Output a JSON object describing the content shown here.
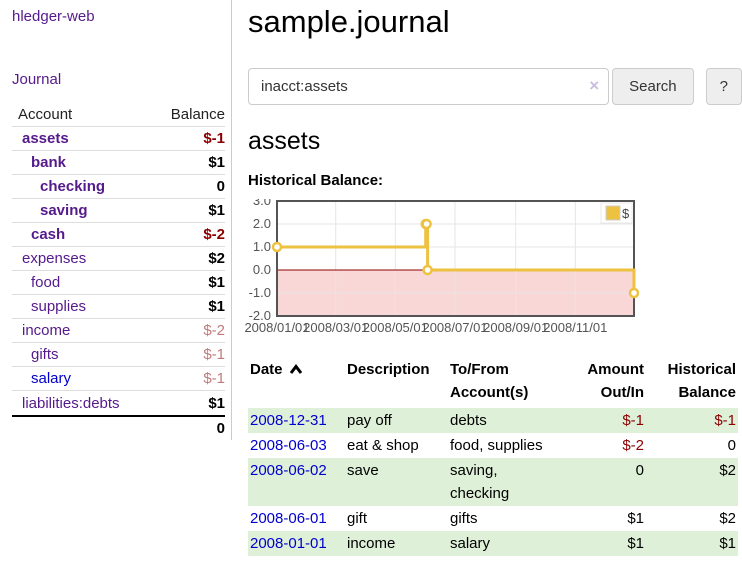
{
  "app": {
    "title": "hledger-web",
    "nav_journal": "Journal"
  },
  "sidebar": {
    "header": {
      "account": "Account",
      "balance": "Balance"
    },
    "accounts": [
      {
        "name": "assets",
        "indent": 1,
        "emph": true,
        "name_tone": "purple",
        "balance": "$-1",
        "balance_tone": "neg-strong"
      },
      {
        "name": "bank",
        "indent": 2,
        "emph": true,
        "name_tone": "purple",
        "balance": "$1",
        "balance_tone": "pos"
      },
      {
        "name": "checking",
        "indent": 3,
        "emph": true,
        "name_tone": "purple",
        "balance": "0",
        "balance_tone": "pos"
      },
      {
        "name": "saving",
        "indent": 3,
        "emph": true,
        "name_tone": "purple",
        "balance": "$1",
        "balance_tone": "pos"
      },
      {
        "name": "cash",
        "indent": 2,
        "emph": true,
        "name_tone": "purple",
        "balance": "$-2",
        "balance_tone": "neg-strong"
      },
      {
        "name": "expenses",
        "indent": 1,
        "emph": false,
        "name_tone": "purple",
        "balance": "$2",
        "balance_tone": "pos"
      },
      {
        "name": "food",
        "indent": 2,
        "emph": false,
        "name_tone": "purple",
        "balance": "$1",
        "balance_tone": "pos"
      },
      {
        "name": "supplies",
        "indent": 2,
        "emph": false,
        "name_tone": "purple",
        "balance": "$1",
        "balance_tone": "pos"
      },
      {
        "name": "income",
        "indent": 1,
        "emph": false,
        "name_tone": "purple",
        "balance": "$-2",
        "balance_tone": "neg-weak"
      },
      {
        "name": "gifts",
        "indent": 2,
        "emph": false,
        "name_tone": "purple",
        "balance": "$-1",
        "balance_tone": "neg-weak"
      },
      {
        "name": "salary",
        "indent": 2,
        "emph": false,
        "name_tone": "blue",
        "balance": "$-1",
        "balance_tone": "neg-weak"
      },
      {
        "name": "liabilities:debts",
        "indent": 1,
        "emph": false,
        "name_tone": "purple",
        "balance": "$1",
        "balance_tone": "pos"
      }
    ],
    "total": "0"
  },
  "main": {
    "title": "sample.journal",
    "search": {
      "value": "inacct:assets",
      "clear": "×",
      "button": "Search",
      "help": "?"
    },
    "account_heading": "assets",
    "chart_label": "Historical Balance:",
    "register": {
      "headers": [
        "Date",
        "Description",
        "To/From Account(s)",
        "Amount Out/In",
        "Historical Balance"
      ],
      "rows": [
        {
          "date": "2008-12-31",
          "description": "pay off",
          "accounts": "debts",
          "amount": "$-1",
          "amount_tone": "neg",
          "balance": "$-1",
          "balance_tone": "neg"
        },
        {
          "date": "2008-06-03",
          "description": "eat & shop",
          "accounts": "food, supplies",
          "amount": "$-2",
          "amount_tone": "neg",
          "balance": "0",
          "balance_tone": "pos"
        },
        {
          "date": "2008-06-02",
          "description": "save",
          "accounts": "saving,\nchecking",
          "amount": "0",
          "amount_tone": "pos",
          "balance": "$2",
          "balance_tone": "pos"
        },
        {
          "date": "2008-06-01",
          "description": "gift",
          "accounts": "gifts",
          "amount": "$1",
          "amount_tone": "pos",
          "balance": "$2",
          "balance_tone": "pos"
        },
        {
          "date": "2008-01-01",
          "description": "income",
          "accounts": "salary",
          "amount": "$1",
          "amount_tone": "pos",
          "balance": "$1",
          "balance_tone": "pos"
        }
      ]
    }
  },
  "chart_data": {
    "type": "line",
    "style": "step-after",
    "title": "Historical Balance:",
    "series": [
      {
        "name": "$",
        "points": [
          [
            "2008-01-01",
            1
          ],
          [
            "2008-06-01",
            2
          ],
          [
            "2008-06-02",
            2
          ],
          [
            "2008-06-03",
            0
          ],
          [
            "2008-12-31",
            -1
          ]
        ]
      }
    ],
    "x_ticks": [
      "2008/01/01",
      "2008/03/01",
      "2008/05/01",
      "2008/07/01",
      "2008/09/01",
      "2008/11/01"
    ],
    "y_ticks": [
      "3.0",
      "2.0",
      "1.0",
      "0.0",
      "-1.0",
      "-2.0"
    ],
    "xlim": [
      "2008-01-01",
      "2008-12-31"
    ],
    "ylim": [
      -2,
      3
    ],
    "grid": true,
    "legend": {
      "label": "$",
      "position": "top-right"
    },
    "negative_region_shaded": true
  },
  "colors": {
    "purple": "#551a8b",
    "blue": "#0000cc",
    "neg-strong": "#8b0000",
    "neg-weak": "#bf7b7b",
    "green-row": "#dff0d8",
    "gold": "#edc240",
    "pink": "#f9d7d7",
    "zero-line": "#8b0000",
    "chart-border": "#545454",
    "grid-line": "#e6e6e6",
    "axis-text": "#545454",
    "btn-bg": "#eeeeee",
    "btn-border": "#cccccc",
    "input-border": "#cccccc",
    "divider": "#cccccc",
    "row-border": "#dddddd",
    "clear-x": "#c9bedd"
  }
}
